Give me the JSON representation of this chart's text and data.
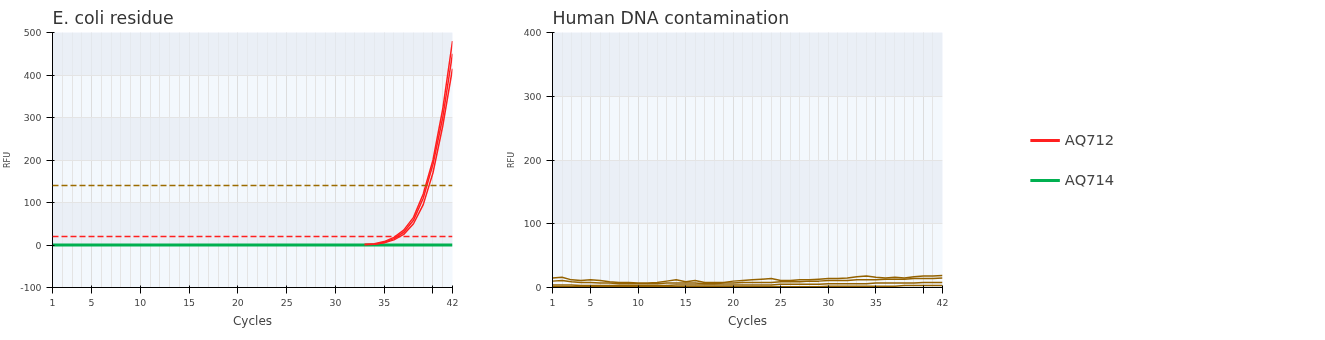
{
  "chart_data": [
    {
      "type": "line",
      "title": "E. coli residue",
      "xlabel": "Cycles",
      "ylabel": "RFU",
      "x": [
        1,
        2,
        3,
        4,
        5,
        6,
        7,
        8,
        9,
        10,
        11,
        12,
        13,
        14,
        15,
        16,
        17,
        18,
        19,
        20,
        21,
        22,
        23,
        24,
        25,
        26,
        27,
        28,
        29,
        30,
        31,
        32,
        33,
        34,
        35,
        36,
        37,
        38,
        39,
        40,
        41,
        42
      ],
      "series": [
        {
          "name": "AQ712",
          "color": "#ff2020",
          "values": [
            null,
            null,
            null,
            null,
            null,
            null,
            null,
            null,
            null,
            null,
            null,
            null,
            null,
            null,
            null,
            null,
            null,
            null,
            null,
            null,
            null,
            null,
            null,
            null,
            null,
            null,
            null,
            null,
            null,
            null,
            null,
            null,
            1,
            3,
            8,
            18,
            35,
            65,
            120,
            200,
            320,
            480
          ]
        },
        {
          "color": "#ff2020",
          "values": [
            null,
            null,
            null,
            null,
            null,
            null,
            null,
            null,
            null,
            null,
            null,
            null,
            null,
            null,
            null,
            null,
            null,
            null,
            null,
            null,
            null,
            null,
            null,
            null,
            null,
            null,
            null,
            null,
            null,
            null,
            null,
            null,
            1,
            2,
            6,
            15,
            30,
            58,
            110,
            190,
            300,
            450
          ]
        },
        {
          "color": "#ff2020",
          "values": [
            null,
            null,
            null,
            null,
            null,
            null,
            null,
            null,
            null,
            null,
            null,
            null,
            null,
            null,
            null,
            null,
            null,
            null,
            null,
            null,
            null,
            null,
            null,
            null,
            null,
            null,
            null,
            null,
            null,
            null,
            null,
            null,
            1,
            2,
            5,
            12,
            25,
            50,
            95,
            170,
            280,
            415
          ]
        },
        {
          "name": "AQ714",
          "color": "#00b050",
          "values": [
            0,
            0,
            0,
            0,
            0,
            0,
            0,
            0,
            0,
            0,
            0,
            0,
            0,
            0,
            0,
            0,
            0,
            0,
            0,
            0,
            0,
            0,
            0,
            0,
            0,
            0,
            0,
            0,
            0,
            0,
            0,
            0,
            0,
            0,
            0,
            0,
            0,
            0,
            0,
            0,
            0,
            0
          ]
        }
      ],
      "ref_lines": [
        {
          "axis": "y",
          "value": 140,
          "color": "#9c6b00",
          "line_style": "dashed"
        },
        {
          "axis": "y",
          "value": 20,
          "color": "#ff2020",
          "line_style": "dashed"
        }
      ],
      "xlim": [
        1,
        42
      ],
      "xticks": [
        1,
        5,
        10,
        15,
        20,
        25,
        30,
        35,
        {
          "value": 40,
          "label": null
        },
        42
      ],
      "ylim": [
        -100,
        500
      ],
      "yticks": [
        -100,
        0,
        100,
        200,
        300,
        400,
        500
      ],
      "grid": true,
      "legend": "right",
      "marker": "none",
      "line_style": "solid"
    },
    {
      "type": "line",
      "title": "Human DNA contamination",
      "xlabel": "Cycles",
      "ylabel": "RFU",
      "x": [
        1,
        2,
        3,
        4,
        5,
        6,
        7,
        8,
        9,
        10,
        11,
        12,
        13,
        14,
        15,
        16,
        17,
        18,
        19,
        20,
        21,
        22,
        23,
        24,
        25,
        26,
        27,
        28,
        29,
        30,
        31,
        32,
        33,
        34,
        35,
        36,
        37,
        38,
        39,
        40,
        41,
        42
      ],
      "series": [
        {
          "color": "#946200",
          "values": [
            15,
            16,
            12,
            11,
            12,
            11,
            9,
            8,
            8,
            7,
            7,
            8,
            10,
            12,
            9,
            11,
            8,
            8,
            8,
            10,
            11,
            12,
            13,
            14,
            11,
            11,
            12,
            12,
            13,
            14,
            14,
            15,
            17,
            18,
            16,
            15,
            16,
            15,
            17,
            18,
            18,
            19
          ]
        },
        {
          "color": "#946200",
          "values": [
            10,
            11,
            9,
            8,
            8,
            7,
            7,
            6,
            6,
            6,
            6,
            6,
            7,
            7,
            7,
            7,
            6,
            6,
            7,
            7,
            8,
            8,
            8,
            8,
            9,
            9,
            9,
            10,
            10,
            11,
            11,
            11,
            12,
            12,
            12,
            13,
            13,
            13,
            14,
            14,
            14,
            15
          ]
        },
        {
          "color": "#946200",
          "values": [
            4,
            4,
            4,
            3,
            3,
            3,
            3,
            3,
            3,
            3,
            3,
            3,
            3,
            4,
            4,
            4,
            4,
            4,
            4,
            4,
            4,
            4,
            4,
            4,
            5,
            5,
            5,
            5,
            5,
            6,
            6,
            6,
            6,
            6,
            7,
            7,
            7,
            7,
            7,
            8,
            8,
            8
          ]
        },
        {
          "color": "#946200",
          "values": [
            1,
            1,
            1,
            1,
            1,
            1,
            1,
            1,
            1,
            1,
            1,
            1,
            1,
            1,
            1,
            1,
            1,
            1,
            1,
            1,
            1,
            1,
            1,
            1,
            1,
            1,
            1,
            1,
            1,
            2,
            2,
            2,
            2,
            2,
            2,
            2,
            2,
            3,
            3,
            3,
            3,
            3
          ]
        }
      ],
      "xlim": [
        1,
        42
      ],
      "xticks": [
        1,
        5,
        10,
        15,
        20,
        25,
        30,
        35,
        {
          "value": 40,
          "label": null
        },
        42
      ],
      "ylim": [
        0,
        400
      ],
      "yticks": [
        0,
        100,
        200,
        300,
        400
      ],
      "grid": true,
      "marker": "none",
      "line_style": "solid"
    }
  ]
}
